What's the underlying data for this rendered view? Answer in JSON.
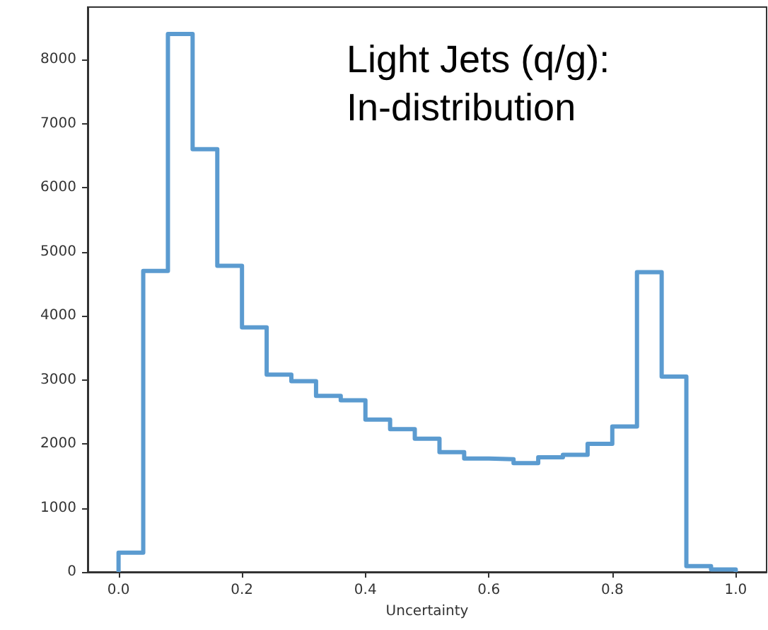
{
  "chart_data": {
    "type": "histogram",
    "xlabel": "Uncertainty",
    "annotations": [
      "Light Jets (q/g):\nIn-distribution"
    ],
    "bins": [
      0,
      0.04,
      0.08,
      0.12,
      0.16,
      0.2,
      0.24,
      0.28,
      0.32,
      0.36,
      0.4,
      0.44,
      0.48,
      0.52,
      0.56,
      0.6,
      0.64,
      0.68,
      0.72,
      0.76,
      0.8,
      0.84,
      0.88,
      0.92,
      0.96,
      1.0
    ],
    "values": [
      300,
      4700,
      8400,
      6600,
      4780,
      3820,
      3080,
      2980,
      2750,
      2680,
      2380,
      2230,
      2080,
      1870,
      1770,
      1760,
      1700,
      1790,
      1830,
      2000,
      2270,
      4680,
      3050,
      90,
      40
    ],
    "color": "#5b9bd0",
    "xlim": [
      -0.05,
      1.05
    ],
    "xticks": [
      {
        "value": 0,
        "label": "0.0"
      },
      0.2,
      0.4,
      0.6,
      0.8,
      {
        "value": 1,
        "label": "1.0"
      }
    ],
    "ylim": [
      0,
      8820
    ],
    "yticks": [
      0,
      1000,
      2000,
      3000,
      4000,
      5000,
      6000,
      7000,
      8000
    ],
    "grid": false
  }
}
